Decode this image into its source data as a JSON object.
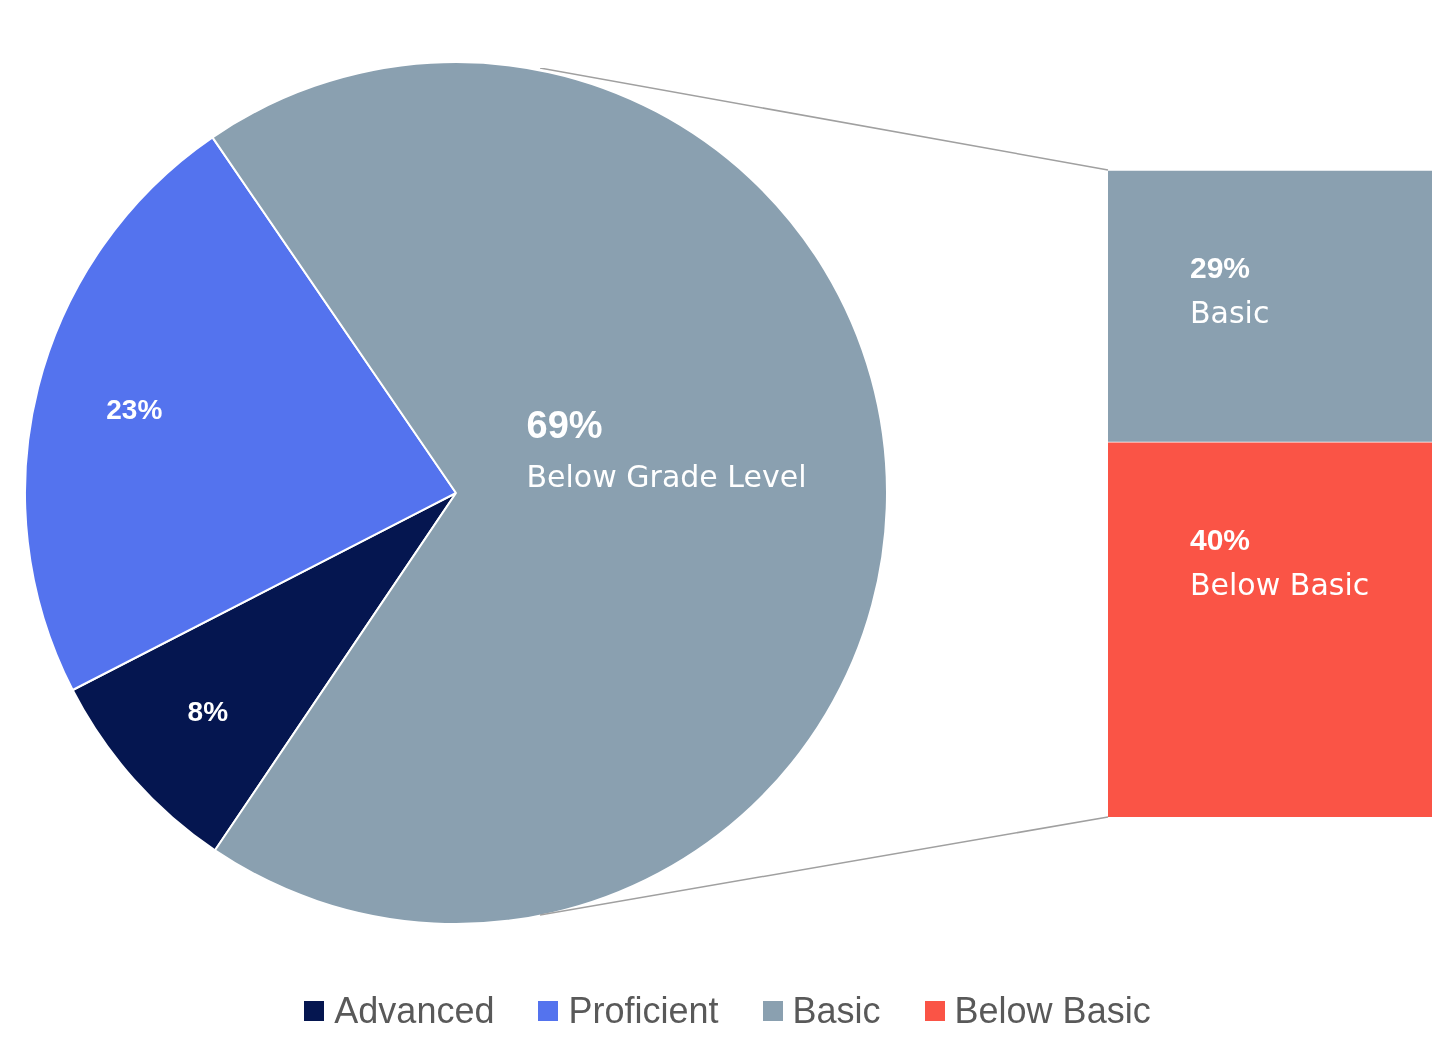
{
  "chart_data": [
    {
      "type": "pie",
      "categories": [
        "Advanced",
        "Proficient",
        "Below Grade Level"
      ],
      "values": [
        8,
        23,
        69
      ],
      "colors": [
        "#051650",
        "#5473ee",
        "#8aa0b0"
      ],
      "value_labels": [
        "8%",
        "23%",
        "69%"
      ],
      "legend": "bottom"
    },
    {
      "type": "bar",
      "stacked": true,
      "categories": [
        null
      ],
      "series": [
        {
          "name": "Below Basic",
          "color": "#fa5446",
          "values": [
            40
          ],
          "value_labels": [
            "40%"
          ]
        },
        {
          "name": "Basic",
          "color": "#8aa0b0",
          "values": [
            29
          ],
          "value_labels": [
            "29%"
          ]
        }
      ]
    }
  ]
}
